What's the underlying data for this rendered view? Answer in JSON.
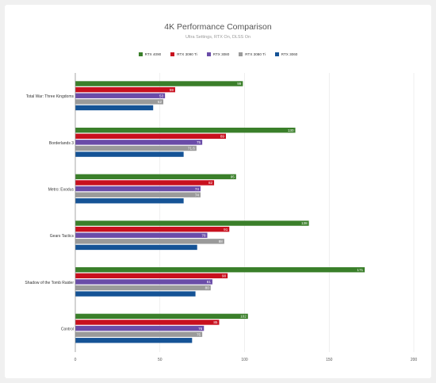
{
  "chart_data": {
    "type": "bar",
    "orientation": "horizontal",
    "title": "4K Performance Comparison",
    "subtitle": "Ultra Settings, RTX On, DLSS On",
    "categories": [
      "Total War: Three Kingdoms",
      "Borderlands 3",
      "Metro: Exodus",
      "Gears Tactics",
      "Shadow of the Tomb Raider",
      "Control"
    ],
    "series": [
      {
        "name": "RTX 4090",
        "color": "#3a7f2a",
        "values": [
          99,
          130,
          95,
          138,
          171,
          102
        ]
      },
      {
        "name": "RTX 3090 Ti",
        "color": "#c8101e",
        "values": [
          59,
          89,
          82,
          91,
          90,
          85
        ]
      },
      {
        "name": "RTX 3080",
        "color": "#6a4ca8",
        "values": [
          53,
          75,
          74,
          78,
          81,
          76
        ]
      },
      {
        "name": "RTX 3080 Ti",
        "color": "#9a9a9a",
        "values": [
          52,
          71.6,
          74,
          88,
          80,
          75
        ]
      },
      {
        "name": "RTX 3060",
        "color": "#155396",
        "values": [
          46,
          64,
          64,
          72,
          71,
          69
        ]
      }
    ],
    "data_labels": [
      [
        "99",
        "130",
        "95",
        "138",
        "171",
        "102"
      ],
      [
        "59",
        "89",
        "82",
        "91",
        "90",
        "85"
      ],
      [
        "53",
        "75",
        "74",
        "78",
        "81",
        "76"
      ],
      [
        "52",
        "71.6",
        "74",
        "88",
        "80",
        "75"
      ],
      [
        "",
        "",
        "",
        "",
        "",
        ""
      ]
    ],
    "xlim": [
      0,
      200
    ],
    "xticks": [
      0,
      50,
      100,
      150,
      200
    ],
    "grid": true,
    "legend": "top"
  }
}
